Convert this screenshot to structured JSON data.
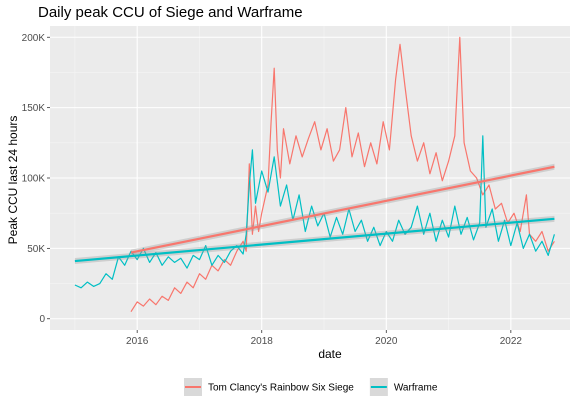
{
  "chart_data": {
    "type": "line",
    "title": "Daily peak CCU of Siege and Warframe",
    "xlabel": "date",
    "ylabel": "Peak CCU last 24 hours",
    "x_ticks": [
      {
        "value": 2016,
        "label": "2016"
      },
      {
        "value": 2018,
        "label": "2018"
      },
      {
        "value": 2020,
        "label": "2020"
      },
      {
        "value": 2022,
        "label": "2022"
      }
    ],
    "y_ticks": [
      {
        "value": 0,
        "label": "0"
      },
      {
        "value": 50000,
        "label": "50K"
      },
      {
        "value": 100000,
        "label": "100K"
      },
      {
        "value": 150000,
        "label": "150K"
      },
      {
        "value": 200000,
        "label": "200K"
      }
    ],
    "xlim": [
      2014.6,
      2022.95
    ],
    "ylim": [
      -8000,
      208000
    ],
    "grid": true,
    "legend_position": "bottom",
    "series": [
      {
        "name": "Tom Clancy's Rainbow Six Siege",
        "color": "#f8766d",
        "points": [
          [
            2015.9,
            5000
          ],
          [
            2016.0,
            12000
          ],
          [
            2016.1,
            9000
          ],
          [
            2016.2,
            14000
          ],
          [
            2016.3,
            10000
          ],
          [
            2016.4,
            16000
          ],
          [
            2016.5,
            13000
          ],
          [
            2016.6,
            22000
          ],
          [
            2016.7,
            18000
          ],
          [
            2016.8,
            26000
          ],
          [
            2016.9,
            22000
          ],
          [
            2017.0,
            32000
          ],
          [
            2017.1,
            28000
          ],
          [
            2017.2,
            38000
          ],
          [
            2017.3,
            34000
          ],
          [
            2017.4,
            42000
          ],
          [
            2017.5,
            38000
          ],
          [
            2017.6,
            48000
          ],
          [
            2017.7,
            55000
          ],
          [
            2017.75,
            48000
          ],
          [
            2017.8,
            110000
          ],
          [
            2017.85,
            60000
          ],
          [
            2017.9,
            80000
          ],
          [
            2017.95,
            62000
          ],
          [
            2018.0,
            75000
          ],
          [
            2018.1,
            95000
          ],
          [
            2018.15,
            140000
          ],
          [
            2018.2,
            178000
          ],
          [
            2018.25,
            120000
          ],
          [
            2018.3,
            100000
          ],
          [
            2018.35,
            135000
          ],
          [
            2018.45,
            110000
          ],
          [
            2018.55,
            130000
          ],
          [
            2018.65,
            115000
          ],
          [
            2018.75,
            128000
          ],
          [
            2018.85,
            140000
          ],
          [
            2018.95,
            120000
          ],
          [
            2019.05,
            135000
          ],
          [
            2019.15,
            112000
          ],
          [
            2019.25,
            120000
          ],
          [
            2019.35,
            150000
          ],
          [
            2019.45,
            115000
          ],
          [
            2019.55,
            132000
          ],
          [
            2019.65,
            108000
          ],
          [
            2019.75,
            125000
          ],
          [
            2019.85,
            110000
          ],
          [
            2019.95,
            140000
          ],
          [
            2020.05,
            120000
          ],
          [
            2020.15,
            170000
          ],
          [
            2020.22,
            195000
          ],
          [
            2020.3,
            165000
          ],
          [
            2020.4,
            130000
          ],
          [
            2020.5,
            112000
          ],
          [
            2020.6,
            125000
          ],
          [
            2020.7,
            103000
          ],
          [
            2020.8,
            118000
          ],
          [
            2020.9,
            98000
          ],
          [
            2021.0,
            112000
          ],
          [
            2021.1,
            130000
          ],
          [
            2021.18,
            200000
          ],
          [
            2021.25,
            125000
          ],
          [
            2021.35,
            105000
          ],
          [
            2021.45,
            100000
          ],
          [
            2021.55,
            88000
          ],
          [
            2021.65,
            95000
          ],
          [
            2021.75,
            78000
          ],
          [
            2021.85,
            82000
          ],
          [
            2021.95,
            68000
          ],
          [
            2022.05,
            75000
          ],
          [
            2022.15,
            62000
          ],
          [
            2022.25,
            88000
          ],
          [
            2022.3,
            60000
          ],
          [
            2022.4,
            55000
          ],
          [
            2022.5,
            62000
          ],
          [
            2022.6,
            48000
          ],
          [
            2022.7,
            55000
          ]
        ],
        "trend": [
          [
            2015.9,
            47000
          ],
          [
            2022.7,
            108000
          ]
        ]
      },
      {
        "name": "Warframe",
        "color": "#00bfc4",
        "points": [
          [
            2015.0,
            24000
          ],
          [
            2015.1,
            22000
          ],
          [
            2015.2,
            26000
          ],
          [
            2015.3,
            23000
          ],
          [
            2015.4,
            25000
          ],
          [
            2015.5,
            32000
          ],
          [
            2015.6,
            28000
          ],
          [
            2015.7,
            44000
          ],
          [
            2015.8,
            38000
          ],
          [
            2015.9,
            48000
          ],
          [
            2016.0,
            42000
          ],
          [
            2016.1,
            50000
          ],
          [
            2016.2,
            40000
          ],
          [
            2016.3,
            47000
          ],
          [
            2016.4,
            38000
          ],
          [
            2016.5,
            44000
          ],
          [
            2016.6,
            40000
          ],
          [
            2016.7,
            43000
          ],
          [
            2016.8,
            36000
          ],
          [
            2016.9,
            45000
          ],
          [
            2017.0,
            42000
          ],
          [
            2017.1,
            52000
          ],
          [
            2017.2,
            38000
          ],
          [
            2017.3,
            45000
          ],
          [
            2017.4,
            40000
          ],
          [
            2017.5,
            48000
          ],
          [
            2017.6,
            52000
          ],
          [
            2017.7,
            46000
          ],
          [
            2017.75,
            60000
          ],
          [
            2017.8,
            95000
          ],
          [
            2017.85,
            120000
          ],
          [
            2017.9,
            82000
          ],
          [
            2018.0,
            105000
          ],
          [
            2018.1,
            90000
          ],
          [
            2018.2,
            115000
          ],
          [
            2018.3,
            80000
          ],
          [
            2018.4,
            95000
          ],
          [
            2018.5,
            70000
          ],
          [
            2018.6,
            88000
          ],
          [
            2018.7,
            62000
          ],
          [
            2018.8,
            80000
          ],
          [
            2018.9,
            66000
          ],
          [
            2019.0,
            75000
          ],
          [
            2019.1,
            58000
          ],
          [
            2019.2,
            72000
          ],
          [
            2019.3,
            60000
          ],
          [
            2019.4,
            78000
          ],
          [
            2019.5,
            62000
          ],
          [
            2019.6,
            70000
          ],
          [
            2019.7,
            55000
          ],
          [
            2019.8,
            65000
          ],
          [
            2019.9,
            52000
          ],
          [
            2020.0,
            62000
          ],
          [
            2020.1,
            55000
          ],
          [
            2020.2,
            70000
          ],
          [
            2020.3,
            60000
          ],
          [
            2020.4,
            65000
          ],
          [
            2020.5,
            80000
          ],
          [
            2020.6,
            60000
          ],
          [
            2020.7,
            75000
          ],
          [
            2020.8,
            55000
          ],
          [
            2020.9,
            70000
          ],
          [
            2021.0,
            58000
          ],
          [
            2021.1,
            80000
          ],
          [
            2021.2,
            60000
          ],
          [
            2021.3,
            72000
          ],
          [
            2021.4,
            56000
          ],
          [
            2021.5,
            68000
          ],
          [
            2021.55,
            130000
          ],
          [
            2021.6,
            65000
          ],
          [
            2021.7,
            78000
          ],
          [
            2021.8,
            55000
          ],
          [
            2021.9,
            70000
          ],
          [
            2022.0,
            52000
          ],
          [
            2022.1,
            68000
          ],
          [
            2022.2,
            50000
          ],
          [
            2022.3,
            60000
          ],
          [
            2022.4,
            48000
          ],
          [
            2022.5,
            55000
          ],
          [
            2022.6,
            45000
          ],
          [
            2022.7,
            60000
          ]
        ],
        "trend": [
          [
            2015.0,
            41000
          ],
          [
            2022.7,
            71000
          ]
        ]
      }
    ]
  }
}
